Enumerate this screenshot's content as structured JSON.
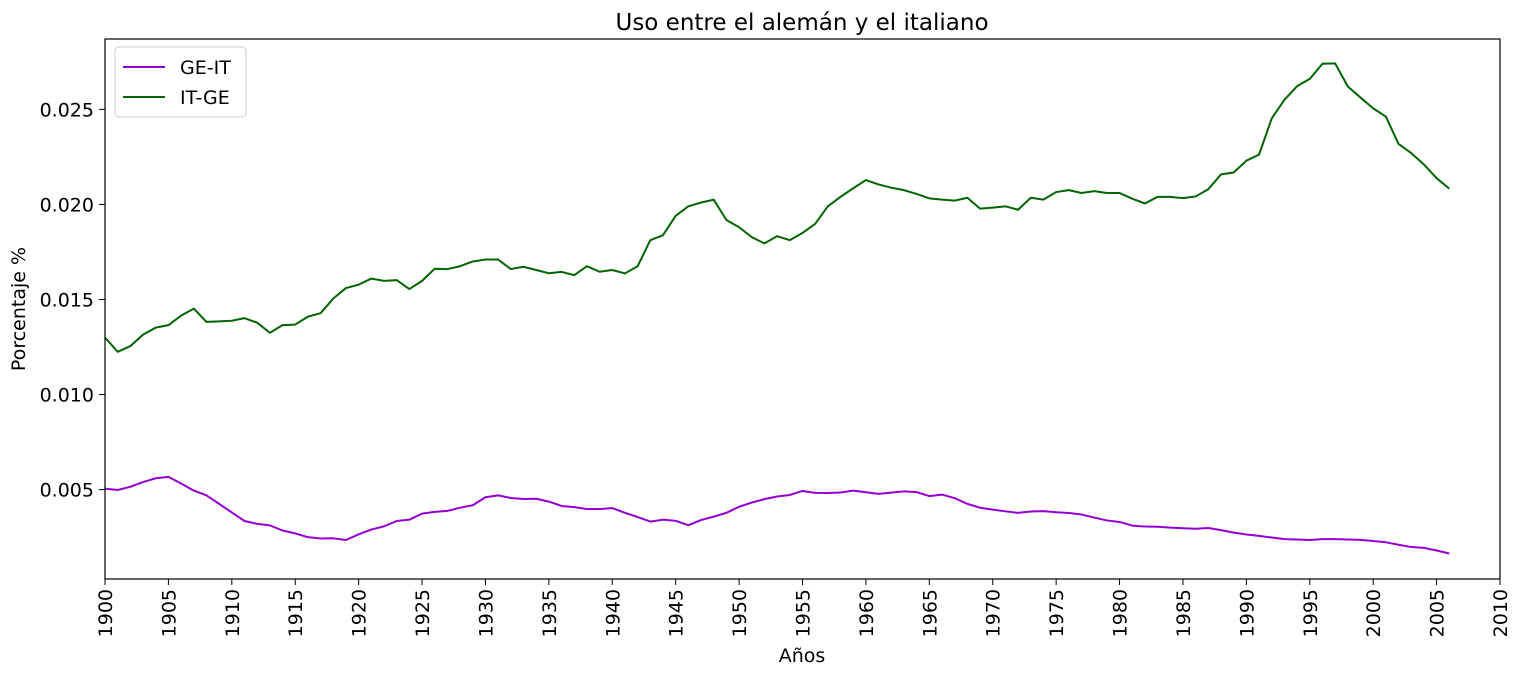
{
  "chart_data": {
    "type": "line",
    "title": "Uso entre el alemán y el italiano",
    "xlabel": "Años",
    "ylabel": "Porcentaje %",
    "xlim": [
      1900,
      2010
    ],
    "ylim": [
      0.0003,
      0.0287
    ],
    "x_ticks": [
      "1900",
      "1905",
      "1910",
      "1915",
      "1920",
      "1925",
      "1930",
      "1935",
      "1940",
      "1945",
      "1950",
      "1955",
      "1960",
      "1965",
      "1970",
      "1975",
      "1980",
      "1985",
      "1990",
      "1995",
      "2000",
      "2005",
      "2010"
    ],
    "y_ticks": [
      "0.005",
      "0.010",
      "0.015",
      "0.020",
      "0.025"
    ],
    "legend_position": "top-left",
    "grid": false,
    "x": [
      1900,
      1901,
      1902,
      1903,
      1904,
      1905,
      1906,
      1907,
      1908,
      1909,
      1910,
      1911,
      1912,
      1913,
      1914,
      1915,
      1916,
      1917,
      1918,
      1919,
      1920,
      1921,
      1922,
      1923,
      1924,
      1925,
      1926,
      1927,
      1928,
      1929,
      1930,
      1931,
      1932,
      1933,
      1934,
      1935,
      1936,
      1937,
      1938,
      1939,
      1940,
      1941,
      1942,
      1943,
      1944,
      1945,
      1946,
      1947,
      1948,
      1949,
      1950,
      1951,
      1952,
      1953,
      1954,
      1955,
      1956,
      1957,
      1958,
      1959,
      1960,
      1961,
      1962,
      1963,
      1964,
      1965,
      1966,
      1967,
      1968,
      1969,
      1970,
      1971,
      1972,
      1973,
      1974,
      1975,
      1976,
      1977,
      1978,
      1979,
      1980,
      1981,
      1982,
      1983,
      1984,
      1985,
      1986,
      1987,
      1988,
      1989,
      1990,
      1991,
      1992,
      1993,
      1994,
      1995,
      1996,
      1997,
      1998,
      1999,
      2000,
      2001,
      2002,
      2003,
      2004,
      2005,
      2006
    ],
    "series": [
      {
        "name": "GE-IT",
        "color": "#9400d3",
        "values": [
          0.00505,
          0.00498,
          0.00515,
          0.0054,
          0.0056,
          0.00567,
          0.00532,
          0.00495,
          0.0047,
          0.00425,
          0.0038,
          0.00335,
          0.0032,
          0.00312,
          0.00285,
          0.0027,
          0.0025,
          0.00243,
          0.00244,
          0.00235,
          0.00265,
          0.0029,
          0.00307,
          0.00335,
          0.00342,
          0.00374,
          0.00383,
          0.00388,
          0.00405,
          0.00418,
          0.0046,
          0.0047,
          0.00456,
          0.00451,
          0.00452,
          0.00437,
          0.00414,
          0.00408,
          0.00398,
          0.00398,
          0.00403,
          0.00378,
          0.00356,
          0.00332,
          0.00342,
          0.00336,
          0.00313,
          0.0034,
          0.00358,
          0.00378,
          0.0041,
          0.00432,
          0.0045,
          0.00464,
          0.00472,
          0.00493,
          0.00483,
          0.00482,
          0.00485,
          0.00495,
          0.00486,
          0.00478,
          0.00484,
          0.00491,
          0.00487,
          0.00466,
          0.00474,
          0.00455,
          0.00425,
          0.00405,
          0.00395,
          0.00386,
          0.00378,
          0.00385,
          0.00387,
          0.00381,
          0.00377,
          0.00369,
          0.00353,
          0.00338,
          0.0033,
          0.00311,
          0.00306,
          0.00305,
          0.003,
          0.00297,
          0.00294,
          0.00298,
          0.00287,
          0.00274,
          0.00264,
          0.00257,
          0.00248,
          0.0024,
          0.00238,
          0.00235,
          0.0024,
          0.0024,
          0.00238,
          0.00236,
          0.0023,
          0.00223,
          0.0021,
          0.00198,
          0.00194,
          0.0018,
          0.00164
        ]
      },
      {
        "name": "IT-GE",
        "color": "#006400",
        "values": [
          0.013,
          0.01225,
          0.01255,
          0.01315,
          0.01352,
          0.01365,
          0.01415,
          0.01452,
          0.01382,
          0.01385,
          0.01388,
          0.01402,
          0.01378,
          0.01325,
          0.01365,
          0.01368,
          0.0141,
          0.01428,
          0.01505,
          0.0156,
          0.01578,
          0.0161,
          0.01598,
          0.01602,
          0.01555,
          0.01598,
          0.01662,
          0.0166,
          0.01675,
          0.017,
          0.0171,
          0.0171,
          0.0166,
          0.01672,
          0.01655,
          0.01638,
          0.01645,
          0.01628,
          0.01675,
          0.01646,
          0.01655,
          0.01637,
          0.01675,
          0.01812,
          0.01838,
          0.0194,
          0.0199,
          0.0201,
          0.02025,
          0.01918,
          0.0188,
          0.01828,
          0.01795,
          0.01833,
          0.01812,
          0.0185,
          0.01898,
          0.0199,
          0.0204,
          0.02085,
          0.02128,
          0.02105,
          0.02088,
          0.02075,
          0.02055,
          0.02032,
          0.02025,
          0.0202,
          0.02035,
          0.01978,
          0.01983,
          0.0199,
          0.01972,
          0.02035,
          0.02025,
          0.02065,
          0.02075,
          0.0206,
          0.0207,
          0.0206,
          0.0206,
          0.0203,
          0.02005,
          0.0204,
          0.0204,
          0.02033,
          0.02042,
          0.0208,
          0.02158,
          0.02168,
          0.0223,
          0.02262,
          0.02452,
          0.0255,
          0.02622,
          0.0266,
          0.0274,
          0.02742,
          0.0262,
          0.02562,
          0.02505,
          0.02462,
          0.02318,
          0.0227,
          0.0221,
          0.02138,
          0.02083
        ]
      }
    ]
  }
}
